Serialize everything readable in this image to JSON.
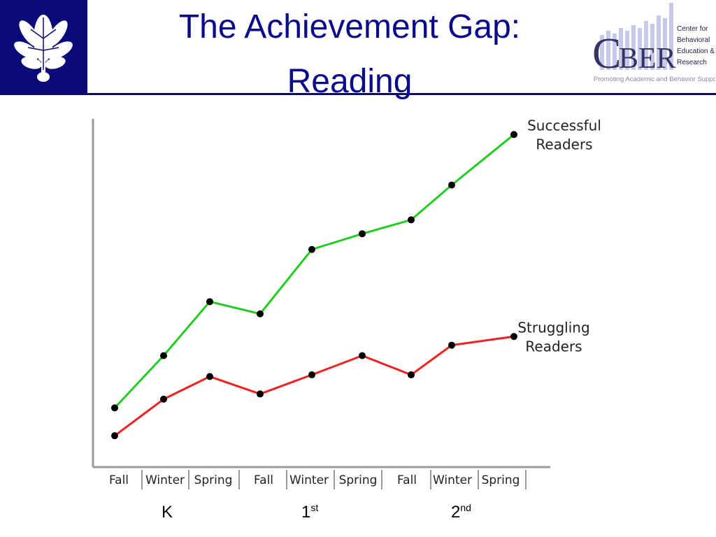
{
  "slide": {
    "title_line1": "The Achievement Gap:",
    "title_line2": "Reading",
    "accent_color": "#0a0a78"
  },
  "cber_logo": {
    "letters": "CBER",
    "subtitle_lines": [
      "Center for",
      "Behavioral",
      "Education &",
      "Research"
    ],
    "tagline": "Promoting Academic and Behavior Supports"
  },
  "grades": [
    {
      "base": "K",
      "sup": ""
    },
    {
      "base": "1",
      "sup": "st"
    },
    {
      "base": "2",
      "sup": "nd"
    }
  ],
  "chart_data": {
    "type": "line",
    "categories": [
      "Fall",
      "Winter",
      "Spring",
      "Fall",
      "Winter",
      "Spring",
      "Fall",
      "Winter",
      "Spring"
    ],
    "series": [
      {
        "name": "Successful Readers",
        "label_lines": [
          "Successful",
          "Readers"
        ],
        "color": "#22cc22",
        "values": [
          3.4,
          6.4,
          9.5,
          8.8,
          12.5,
          13.4,
          14.2,
          16.2,
          19.1
        ]
      },
      {
        "name": "Struggling Readers",
        "label_lines": [
          "Struggling",
          "Readers"
        ],
        "color": "#ee2222",
        "values": [
          1.8,
          3.9,
          5.2,
          4.2,
          5.3,
          6.4,
          5.3,
          7.0,
          7.5
        ]
      }
    ],
    "ylim": [
      0,
      20
    ],
    "grid": false,
    "y_tick_labels": false
  }
}
